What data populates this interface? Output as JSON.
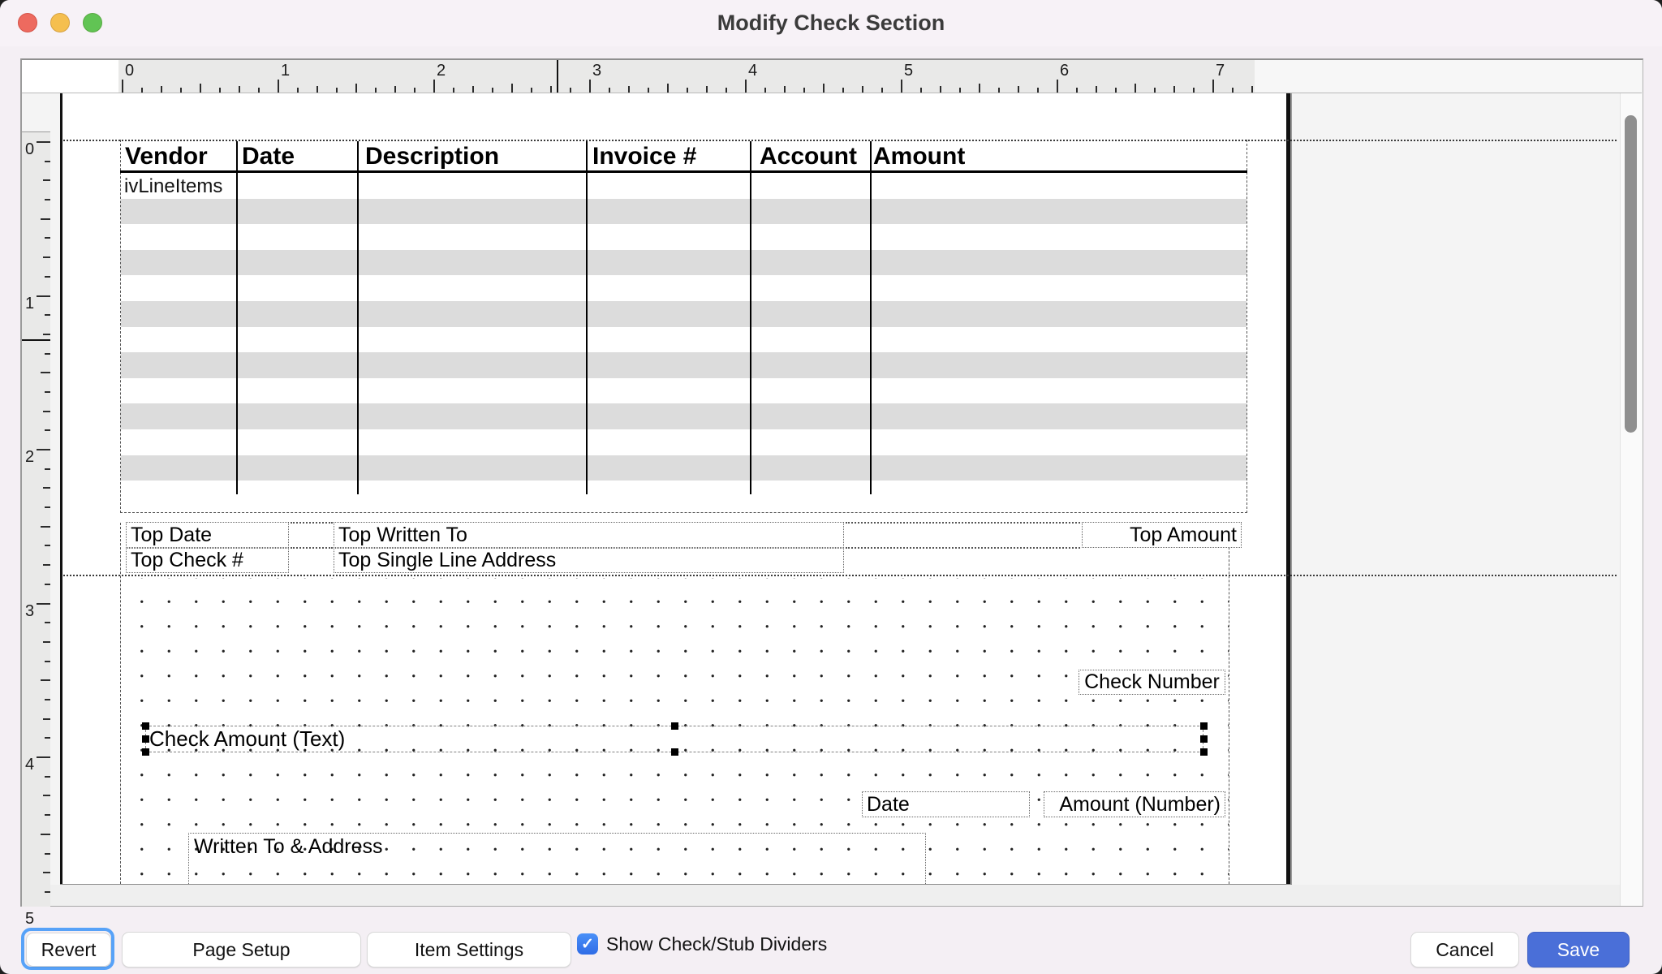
{
  "window": {
    "title": "Modify Check Section"
  },
  "rulers": {
    "horizontal_numbers": [
      "0",
      "1",
      "2",
      "3",
      "4",
      "5",
      "6",
      "7"
    ],
    "vertical_numbers": [
      "0",
      "1",
      "2",
      "3",
      "4",
      "5"
    ]
  },
  "stub_table": {
    "columns": [
      "Vendor",
      "Date",
      "Description",
      "Invoice #",
      "Account",
      "Amount"
    ],
    "placeholder_row": "ivLineItems"
  },
  "stub_fields": {
    "top_date": "Top Date",
    "top_written_to": "Top Written To",
    "top_amount": "Top Amount",
    "top_check_no": "Top Check #",
    "top_single_line_address": "Top Single Line Address"
  },
  "check_fields": {
    "check_number": "Check Number",
    "check_amount_text": "Check Amount (Text)",
    "date": "Date",
    "amount_number": "Amount (Number)",
    "written_to_address": "Written To & Address"
  },
  "toolbar": {
    "revert": "Revert",
    "page_setup": "Page Setup",
    "item_settings": "Item Settings",
    "show_dividers_label": "Show Check/Stub Dividers",
    "show_dividers_checked": true,
    "cancel": "Cancel",
    "save": "Save",
    "check_glyph": "✓"
  },
  "colors": {
    "accent_save": "#4a6fd8",
    "focus_ring": "#57a2f8",
    "checkbox_blue": "#3478f6",
    "traffic_red": "#ed6a5f",
    "traffic_yellow": "#f5bf4f",
    "traffic_green": "#61c454",
    "stripe_gray": "#dcdcdc"
  }
}
